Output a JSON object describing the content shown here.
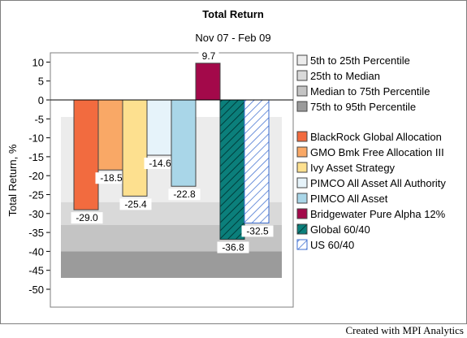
{
  "chart_data": {
    "type": "bar",
    "title": "Total Return",
    "subtitle": "Nov 07 - Feb 09",
    "ylabel": "Total Return, %",
    "xlabel": "",
    "ylim": [
      -50,
      10
    ],
    "yticks": [
      10,
      5,
      0,
      -5,
      -10,
      -15,
      -20,
      -25,
      -30,
      -35,
      -40,
      -45,
      -50
    ],
    "percentile_bands": [
      {
        "name": "5th to 25th Percentile",
        "from": -4.5,
        "to": -27.0,
        "color": "#ececec"
      },
      {
        "name": "25th to Median",
        "from": -27.0,
        "to": -33.0,
        "color": "#d9d9d9"
      },
      {
        "name": "Median to 75th Percentile",
        "from": -33.0,
        "to": -40.0,
        "color": "#c4c4c4"
      },
      {
        "name": "75th to 95th Percentile",
        "from": -40.0,
        "to": -47.0,
        "color": "#9b9b9b"
      }
    ],
    "series": [
      {
        "name": "BlackRock Global Allocation",
        "value": -29.0,
        "label": "-29.0",
        "color": "#f26b3f",
        "pattern": "solid"
      },
      {
        "name": "GMO Bmk Free Allocation III",
        "value": -18.5,
        "label": "-18.5",
        "color": "#f9a866",
        "pattern": "solid"
      },
      {
        "name": "Ivy Asset Strategy",
        "value": -25.4,
        "label": "-25.4",
        "color": "#fde08f",
        "pattern": "solid"
      },
      {
        "name": "PIMCO All Asset All Authority",
        "value": -14.6,
        "label": "-14.6",
        "color": "#e6f3fa",
        "pattern": "solid"
      },
      {
        "name": "PIMCO All Asset",
        "value": -22.8,
        "label": "-22.8",
        "color": "#a9d6e8",
        "pattern": "solid"
      },
      {
        "name": "Bridgewater Pure Alpha 12%",
        "value": 9.7,
        "label": "9.7",
        "color": "#a3094a",
        "pattern": "solid"
      },
      {
        "name": "Global 60/40",
        "value": -36.8,
        "label": "-36.8",
        "color": "#007a78",
        "pattern": "hatch-dark"
      },
      {
        "name": "US 60/40",
        "value": -32.5,
        "label": "-32.5",
        "color": "#3f6fd0",
        "pattern": "hatch-light"
      }
    ]
  },
  "footer": "Created with MPI Analytics"
}
